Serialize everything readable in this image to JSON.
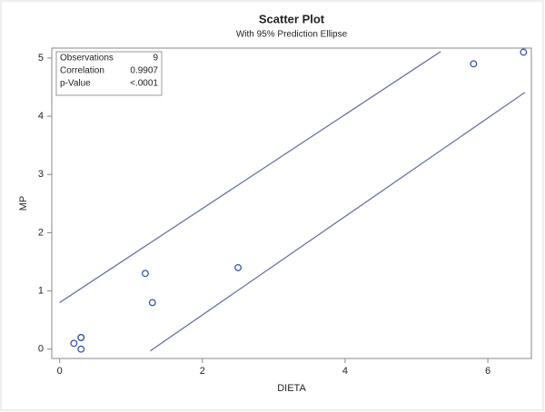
{
  "chart_data": {
    "type": "scatter",
    "title": "Scatter Plot",
    "subtitle": "With 95% Prediction Ellipse",
    "x_label": "DIETA",
    "y_label": "MP",
    "x": [
      0.2,
      0.3,
      0.3,
      0.3,
      1.2,
      1.3,
      2.5,
      5.8,
      6.5
    ],
    "values": [
      0.1,
      0.2,
      0.2,
      0,
      1.3,
      0.8,
      1.4,
      4.9,
      5.1
    ],
    "color": "#3a57a8",
    "xlim": [
      -0.11,
      6.61
    ],
    "ylim": [
      -0.16,
      5.17
    ],
    "xticks": [
      0,
      2,
      4,
      6
    ],
    "yticks": [
      0,
      1,
      2,
      3,
      4,
      5
    ],
    "ellipse": {
      "color": "#6a74a8",
      "segments": [
        {
          "x": [
            0,
            5.34
          ],
          "y": [
            0.8,
            5.11
          ]
        },
        {
          "x": [
            1.27,
            6.52
          ],
          "y": [
            -0.03,
            4.41
          ]
        }
      ]
    },
    "stats": [
      {
        "label": "Observations",
        "value": 9
      },
      {
        "label": "Correlation",
        "value": 0.9907
      },
      {
        "label": "p-Value",
        "value": "<.0001"
      }
    ]
  }
}
